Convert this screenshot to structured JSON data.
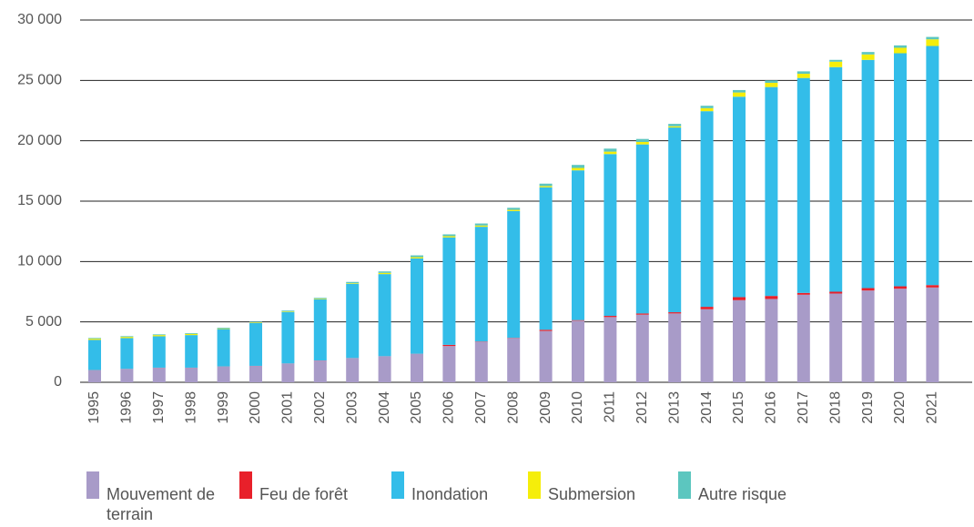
{
  "chart_data": {
    "type": "stacked_bar",
    "categories": [
      "1995",
      "1996",
      "1997",
      "1998",
      "1999",
      "2000",
      "2001",
      "2002",
      "2003",
      "2004",
      "2005",
      "2006",
      "2007",
      "2008",
      "2009",
      "2010",
      "2011",
      "2012",
      "2013",
      "2014",
      "2015",
      "2016",
      "2017",
      "2018",
      "2019",
      "2020",
      "2021"
    ],
    "series": [
      {
        "name": "Mouvement de terrain",
        "color": "#a89bc8",
        "values": [
          1000,
          1100,
          1200,
          1200,
          1300,
          1350,
          1550,
          1800,
          2000,
          2150,
          2350,
          3000,
          3350,
          3650,
          4250,
          5100,
          5400,
          5600,
          5700,
          6050,
          6800,
          6900,
          7250,
          7350,
          7600,
          7750,
          7850
        ]
      },
      {
        "name": "Feu de forêt",
        "color": "#e8202a",
        "values": [
          10,
          10,
          10,
          10,
          10,
          10,
          10,
          10,
          10,
          10,
          10,
          100,
          30,
          30,
          100,
          50,
          100,
          100,
          100,
          200,
          250,
          250,
          150,
          150,
          200,
          200,
          200
        ]
      },
      {
        "name": "Inondation",
        "color": "#33bde9",
        "values": [
          2500,
          2550,
          2600,
          2700,
          3100,
          3550,
          4250,
          5050,
          6150,
          6800,
          7900,
          8900,
          9500,
          10500,
          11800,
          12400,
          13400,
          14000,
          15300,
          16200,
          16600,
          17300,
          17800,
          18600,
          18900,
          19300,
          19800
        ]
      },
      {
        "name": "Submersion",
        "color": "#f5ee0a",
        "values": [
          100,
          100,
          100,
          100,
          50,
          50,
          50,
          50,
          50,
          100,
          100,
          100,
          100,
          100,
          100,
          200,
          200,
          200,
          100,
          250,
          350,
          350,
          350,
          450,
          450,
          450,
          550
        ]
      },
      {
        "name": "Autre risque",
        "color": "#5cc6bf",
        "values": [
          60,
          60,
          60,
          60,
          60,
          60,
          80,
          80,
          100,
          120,
          150,
          150,
          170,
          170,
          200,
          250,
          250,
          250,
          200,
          200,
          200,
          200,
          200,
          150,
          200,
          200,
          200
        ]
      }
    ],
    "ylim": [
      0,
      30000
    ],
    "yticks": [
      0,
      {
        "value": 5000,
        "label": "5 000"
      },
      {
        "value": 10000,
        "label": "10 000"
      },
      {
        "value": 15000,
        "label": "15 000"
      },
      {
        "value": 20000,
        "label": "20 000"
      },
      {
        "value": 25000,
        "label": "25 000"
      },
      {
        "value": 30000,
        "label": "30 000"
      }
    ],
    "grid": true,
    "legend": "bottom"
  }
}
